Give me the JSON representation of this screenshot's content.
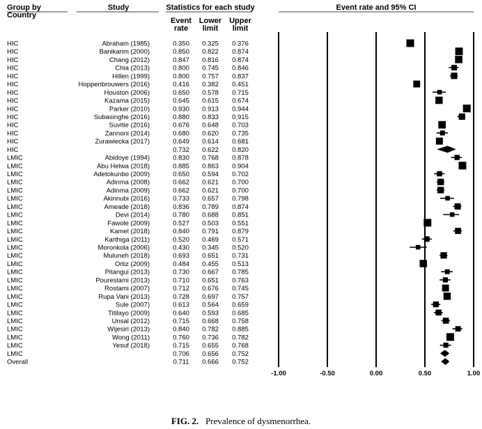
{
  "headers": {
    "group": "Group by",
    "group_sub": "Country",
    "study": "Study",
    "stats": "Statistics for each study",
    "event_rate": [
      "Event",
      "rate"
    ],
    "lower": [
      "Lower",
      "limit"
    ],
    "upper": [
      "Upper",
      "limit"
    ],
    "plot_title": "Event rate and 95% CI"
  },
  "caption": {
    "label": "FIG. 2.",
    "text": "Prevalence of dysmenorrhea."
  },
  "chart_data": {
    "type": "forest",
    "title": "Event rate and 95% CI",
    "xlim": [
      -1.0,
      1.0
    ],
    "ticks": [
      -1.0,
      -0.5,
      0.0,
      0.5,
      1.0
    ],
    "tick_labels": [
      "-1.00",
      "-0.50",
      "0.00",
      "0.50",
      "1.00"
    ],
    "rows": [
      {
        "group": "HIC",
        "study": "Abraham (1985)",
        "rate": "0.350",
        "lower": "0.325",
        "upper": "0.376",
        "kind": "study"
      },
      {
        "group": "HIC",
        "study": "Banikarim (2000)",
        "rate": "0.850",
        "lower": "0.822",
        "upper": "0.874",
        "kind": "study"
      },
      {
        "group": "HIC",
        "study": "Chang (2012)",
        "rate": "0.847",
        "lower": "0.816",
        "upper": "0.874",
        "kind": "study"
      },
      {
        "group": "HIC",
        "study": "Chia (2013)",
        "rate": "0.800",
        "lower": "0.745",
        "upper": "0.846",
        "kind": "study"
      },
      {
        "group": "HIC",
        "study": "Hillen (1999)",
        "rate": "0.800",
        "lower": "0.757",
        "upper": "0.837",
        "kind": "study"
      },
      {
        "group": "HIC",
        "study": "Hoppenbrouwers (2016)",
        "rate": "0.416",
        "lower": "0.382",
        "upper": "0.451",
        "kind": "study"
      },
      {
        "group": "HIC",
        "study": "Houston (2006)",
        "rate": "0.650",
        "lower": "0.578",
        "upper": "0.715",
        "kind": "study"
      },
      {
        "group": "HIC",
        "study": "Kazama (2015)",
        "rate": "0.645",
        "lower": "0.615",
        "upper": "0.674",
        "kind": "study"
      },
      {
        "group": "HIC",
        "study": "Parker (2010)",
        "rate": "0.930",
        "lower": "0.913",
        "upper": "0.944",
        "kind": "study"
      },
      {
        "group": "HIC",
        "study": "Subasinghe (2016)",
        "rate": "0.880",
        "lower": "0.833",
        "upper": "0.915",
        "kind": "study"
      },
      {
        "group": "HIC",
        "study": "Suvitie (2016)",
        "rate": "0.676",
        "lower": "0.648",
        "upper": "0.703",
        "kind": "study"
      },
      {
        "group": "HIC",
        "study": "Zannoni (2014)",
        "rate": "0.680",
        "lower": "0.620",
        "upper": "0.735",
        "kind": "study"
      },
      {
        "group": "HIC",
        "study": "Zurawiecka (2017)",
        "rate": "0.649",
        "lower": "0.614",
        "upper": "0.681",
        "kind": "study"
      },
      {
        "group": "HIC",
        "study": "",
        "rate": "0.732",
        "lower": "0.622",
        "upper": "0.820",
        "kind": "summary"
      },
      {
        "group": "LMIC",
        "study": "Abidoye (1994)",
        "rate": "0.830",
        "lower": "0.768",
        "upper": "0.878",
        "kind": "study"
      },
      {
        "group": "LMIC",
        "study": "Abu Helwa (2018)",
        "rate": "0.885",
        "lower": "0.863",
        "upper": "0.904",
        "kind": "study"
      },
      {
        "group": "LMIC",
        "study": "Adetokunbo (2009)",
        "rate": "0.650",
        "lower": "0.594",
        "upper": "0.702",
        "kind": "study"
      },
      {
        "group": "LMIC",
        "study": "Adinma (2008)",
        "rate": "0.662",
        "lower": "0.621",
        "upper": "0.700",
        "kind": "study"
      },
      {
        "group": "LMIC",
        "study": "Adinma (2009)",
        "rate": "0.662",
        "lower": "0.621",
        "upper": "0.700",
        "kind": "study"
      },
      {
        "group": "LMIC",
        "study": "Akinnubi (2016)",
        "rate": "0.733",
        "lower": "0.657",
        "upper": "0.798",
        "kind": "study"
      },
      {
        "group": "LMIC",
        "study": "Ameade (2018)",
        "rate": "0.836",
        "lower": "0.789",
        "upper": "0.874",
        "kind": "study"
      },
      {
        "group": "LMIC",
        "study": "Devi (2014)",
        "rate": "0.780",
        "lower": "0.688",
        "upper": "0.851",
        "kind": "study"
      },
      {
        "group": "LMIC",
        "study": "Fawole (2009)",
        "rate": "0.527",
        "lower": "0.503",
        "upper": "0.551",
        "kind": "study"
      },
      {
        "group": "LMIC",
        "study": "Kamel (2018)",
        "rate": "0.840",
        "lower": "0.791",
        "upper": "0.879",
        "kind": "study"
      },
      {
        "group": "LMIC",
        "study": "Karthiga (2011)",
        "rate": "0.520",
        "lower": "0.469",
        "upper": "0.571",
        "kind": "study"
      },
      {
        "group": "LMIC",
        "study": "Moronkola (2006)",
        "rate": "0.430",
        "lower": "0.345",
        "upper": "0.520",
        "kind": "study"
      },
      {
        "group": "LMIC",
        "study": "Muluneh (2018)",
        "rate": "0.693",
        "lower": "0.651",
        "upper": "0.731",
        "kind": "study"
      },
      {
        "group": "LMIC",
        "study": "Ortiz (2009)",
        "rate": "0.484",
        "lower": "0.455",
        "upper": "0.513",
        "kind": "study"
      },
      {
        "group": "LMIC",
        "study": "Pitangui (2013)",
        "rate": "0.730",
        "lower": "0.667",
        "upper": "0.785",
        "kind": "study"
      },
      {
        "group": "LMIC",
        "study": "Poureslami (2013)",
        "rate": "0.710",
        "lower": "0.651",
        "upper": "0.763",
        "kind": "study"
      },
      {
        "group": "LMIC",
        "study": "Rostami (2007)",
        "rate": "0.712",
        "lower": "0.676",
        "upper": "0.745",
        "kind": "study"
      },
      {
        "group": "LMIC",
        "study": "Rupa Vani (2013)",
        "rate": "0.728",
        "lower": "0.697",
        "upper": "0.757",
        "kind": "study"
      },
      {
        "group": "LMIC",
        "study": "Sule (2007)",
        "rate": "0.613",
        "lower": "0.564",
        "upper": "0.659",
        "kind": "study"
      },
      {
        "group": "LMIC",
        "study": "Titilayo (2009)",
        "rate": "0.640",
        "lower": "0.593",
        "upper": "0.685",
        "kind": "study"
      },
      {
        "group": "LMIC",
        "study": "Unsal (2012)",
        "rate": "0.715",
        "lower": "0.668",
        "upper": "0.758",
        "kind": "study"
      },
      {
        "group": "LMIC",
        "study": "Wijesiri (2013)",
        "rate": "0.840",
        "lower": "0.782",
        "upper": "0.885",
        "kind": "study"
      },
      {
        "group": "LMIC",
        "study": "Wong (2011)",
        "rate": "0.760",
        "lower": "0.736",
        "upper": "0.782",
        "kind": "study"
      },
      {
        "group": "LMIC",
        "study": "Yesuf (2018)",
        "rate": "0.715",
        "lower": "0.655",
        "upper": "0.768",
        "kind": "study"
      },
      {
        "group": "LMIC",
        "study": "",
        "rate": "0.706",
        "lower": "0.656",
        "upper": "0.752",
        "kind": "summary"
      },
      {
        "group": "Overall",
        "study": "",
        "rate": "0.711",
        "lower": "0.666",
        "upper": "0.752",
        "kind": "summary"
      }
    ]
  }
}
